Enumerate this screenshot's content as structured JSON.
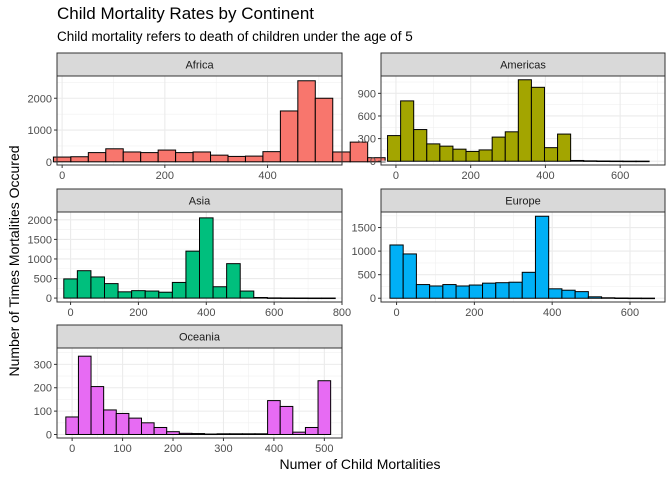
{
  "title": "Child Mortality Rates by Continent",
  "subtitle": "Child mortality refers to death of children under the age of 5",
  "xlabel": "Numer of Child Mortalities",
  "ylabel": "Number of Times Mortalities Occured",
  "chart_data": [
    {
      "type": "bar",
      "facet": "Africa",
      "color": "#F8766D",
      "x_range": [
        -10,
        545
      ],
      "x_ticks": [
        0,
        200,
        400
      ],
      "y_range": [
        -100,
        2700
      ],
      "y_ticks": [
        0,
        1000,
        2000
      ],
      "bins": [
        {
          "x": 0,
          "count": 150
        },
        {
          "x": 34,
          "count": 160
        },
        {
          "x": 68,
          "count": 290
        },
        {
          "x": 102,
          "count": 410
        },
        {
          "x": 136,
          "count": 310
        },
        {
          "x": 170,
          "count": 290
        },
        {
          "x": 204,
          "count": 370
        },
        {
          "x": 238,
          "count": 290
        },
        {
          "x": 272,
          "count": 310
        },
        {
          "x": 306,
          "count": 210
        },
        {
          "x": 340,
          "count": 170
        },
        {
          "x": 374,
          "count": 180
        },
        {
          "x": 408,
          "count": 320
        },
        {
          "x": 442,
          "count": 1600
        },
        {
          "x": 476,
          "count": 2550
        },
        {
          "x": 510,
          "count": 2000
        },
        {
          "x": 544,
          "count": 310
        },
        {
          "x": 578,
          "count": 620
        },
        {
          "x": 612,
          "count": 130
        }
      ]
    },
    {
      "type": "bar",
      "facet": "Americas",
      "color": "#A3A500",
      "x_range": [
        -40,
        720
      ],
      "x_ticks": [
        0,
        200,
        400,
        600
      ],
      "y_range": [
        -50,
        1130
      ],
      "y_ticks": [
        0,
        300,
        600,
        900
      ],
      "bins": [
        {
          "x": -5,
          "count": 340
        },
        {
          "x": 30,
          "count": 800
        },
        {
          "x": 65,
          "count": 420
        },
        {
          "x": 100,
          "count": 230
        },
        {
          "x": 135,
          "count": 200
        },
        {
          "x": 170,
          "count": 160
        },
        {
          "x": 205,
          "count": 130
        },
        {
          "x": 240,
          "count": 150
        },
        {
          "x": 275,
          "count": 320
        },
        {
          "x": 310,
          "count": 390
        },
        {
          "x": 345,
          "count": 1080
        },
        {
          "x": 380,
          "count": 980
        },
        {
          "x": 415,
          "count": 180
        },
        {
          "x": 450,
          "count": 360
        },
        {
          "x": 485,
          "count": 10
        },
        {
          "x": 520,
          "count": 5
        },
        {
          "x": 555,
          "count": 3
        },
        {
          "x": 590,
          "count": 2
        },
        {
          "x": 625,
          "count": 1
        },
        {
          "x": 660,
          "count": 1
        }
      ]
    },
    {
      "type": "bar",
      "facet": "Asia",
      "color": "#00BF7D",
      "x_range": [
        -40,
        800
      ],
      "x_ticks": [
        0,
        200,
        400,
        600,
        800
      ],
      "y_range": [
        -100,
        2200
      ],
      "y_ticks": [
        0,
        500,
        1000,
        1500,
        2000
      ],
      "bins": [
        {
          "x": 0,
          "count": 490
        },
        {
          "x": 40,
          "count": 700
        },
        {
          "x": 80,
          "count": 540
        },
        {
          "x": 120,
          "count": 370
        },
        {
          "x": 160,
          "count": 160
        },
        {
          "x": 200,
          "count": 190
        },
        {
          "x": 240,
          "count": 180
        },
        {
          "x": 280,
          "count": 150
        },
        {
          "x": 320,
          "count": 400
        },
        {
          "x": 360,
          "count": 1200
        },
        {
          "x": 400,
          "count": 2050
        },
        {
          "x": 440,
          "count": 290
        },
        {
          "x": 480,
          "count": 880
        },
        {
          "x": 520,
          "count": 180
        },
        {
          "x": 560,
          "count": 15
        },
        {
          "x": 600,
          "count": 5
        },
        {
          "x": 640,
          "count": 3
        },
        {
          "x": 680,
          "count": 2
        },
        {
          "x": 720,
          "count": 1
        },
        {
          "x": 760,
          "count": 1
        }
      ]
    },
    {
      "type": "bar",
      "facet": "Europe",
      "color": "#00B0F6",
      "x_range": [
        -40,
        690
      ],
      "x_ticks": [
        0,
        200,
        400,
        600
      ],
      "y_range": [
        -80,
        1830
      ],
      "y_ticks": [
        0,
        500,
        1000,
        1500
      ],
      "bins": [
        {
          "x": 0,
          "count": 1130
        },
        {
          "x": 34,
          "count": 940
        },
        {
          "x": 68,
          "count": 290
        },
        {
          "x": 102,
          "count": 260
        },
        {
          "x": 136,
          "count": 290
        },
        {
          "x": 170,
          "count": 260
        },
        {
          "x": 204,
          "count": 280
        },
        {
          "x": 238,
          "count": 320
        },
        {
          "x": 272,
          "count": 330
        },
        {
          "x": 306,
          "count": 340
        },
        {
          "x": 340,
          "count": 550
        },
        {
          "x": 374,
          "count": 1740
        },
        {
          "x": 408,
          "count": 200
        },
        {
          "x": 442,
          "count": 170
        },
        {
          "x": 476,
          "count": 140
        },
        {
          "x": 510,
          "count": 30
        },
        {
          "x": 544,
          "count": 10
        },
        {
          "x": 578,
          "count": 5
        },
        {
          "x": 612,
          "count": 3
        },
        {
          "x": 646,
          "count": 2
        }
      ]
    },
    {
      "type": "bar",
      "facet": "Oceania",
      "color": "#E76BF3",
      "x_range": [
        -30,
        535
      ],
      "x_ticks": [
        0,
        100,
        200,
        300,
        400,
        500
      ],
      "y_range": [
        -15,
        370
      ],
      "y_ticks": [
        0,
        100,
        200,
        300
      ],
      "bins": [
        {
          "x": 0,
          "count": 75
        },
        {
          "x": 25,
          "count": 335
        },
        {
          "x": 50,
          "count": 205
        },
        {
          "x": 75,
          "count": 105
        },
        {
          "x": 100,
          "count": 90
        },
        {
          "x": 125,
          "count": 70
        },
        {
          "x": 150,
          "count": 50
        },
        {
          "x": 175,
          "count": 30
        },
        {
          "x": 200,
          "count": 12
        },
        {
          "x": 225,
          "count": 5
        },
        {
          "x": 250,
          "count": 4
        },
        {
          "x": 275,
          "count": 2
        },
        {
          "x": 300,
          "count": 3
        },
        {
          "x": 325,
          "count": 3
        },
        {
          "x": 350,
          "count": 3
        },
        {
          "x": 375,
          "count": 3
        },
        {
          "x": 400,
          "count": 145
        },
        {
          "x": 425,
          "count": 120
        },
        {
          "x": 450,
          "count": 10
        },
        {
          "x": 475,
          "count": 30
        },
        {
          "x": 500,
          "count": 230
        }
      ]
    }
  ]
}
